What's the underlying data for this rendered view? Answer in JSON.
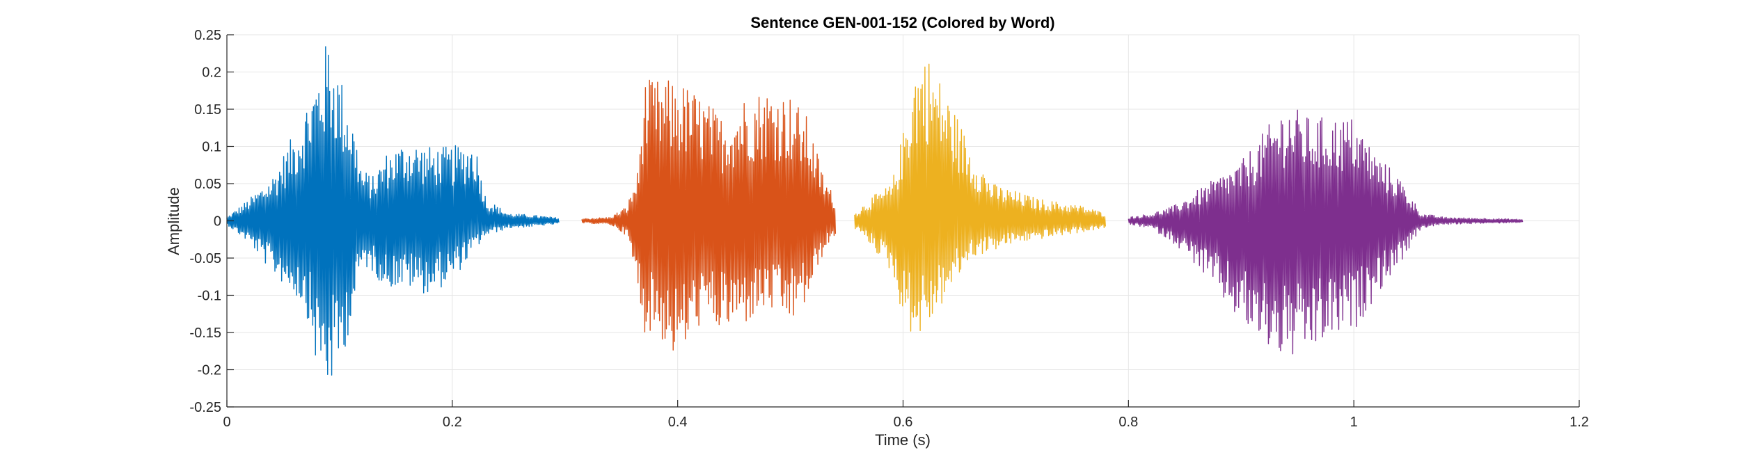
{
  "chart_data": {
    "type": "line",
    "title": "Sentence GEN-001-152 (Colored by Word)",
    "xlabel": "Time (s)",
    "ylabel": "Amplitude",
    "xlim": [
      0,
      1.2
    ],
    "ylim": [
      -0.25,
      0.25
    ],
    "xticks": [
      0,
      0.2,
      0.4,
      0.6,
      0.8,
      1,
      1.2
    ],
    "xtick_labels": [
      "0",
      "0.2",
      "0.4",
      "0.6",
      "0.8",
      "1",
      "1.2"
    ],
    "yticks": [
      -0.25,
      -0.2,
      -0.15,
      -0.1,
      -0.05,
      0,
      0.05,
      0.1,
      0.15,
      0.2,
      0.25
    ],
    "ytick_labels": [
      "-0.25",
      "-0.2",
      "-0.15",
      "-0.1",
      "-0.05",
      "0",
      "0.05",
      "0.1",
      "0.15",
      "0.2",
      "0.25"
    ],
    "grid": true,
    "series": [
      {
        "color": "#0072BD",
        "x": [
          0,
          0.02,
          0.04,
          0.06,
          0.07,
          0.08,
          0.09,
          0.1,
          0.11,
          0.12,
          0.13,
          0.14,
          0.16,
          0.18,
          0.2,
          0.22,
          0.23,
          0.25,
          0.27,
          0.295
        ],
        "upper": [
          0.005,
          0.03,
          0.06,
          0.12,
          0.16,
          0.2,
          0.25,
          0.2,
          0.15,
          0.07,
          0.06,
          0.09,
          0.11,
          0.1,
          0.1,
          0.11,
          0.03,
          0.01,
          0.008,
          0.004
        ],
        "lower": [
          -0.005,
          -0.03,
          -0.07,
          -0.1,
          -0.12,
          -0.2,
          -0.23,
          -0.2,
          -0.14,
          -0.06,
          -0.07,
          -0.09,
          -0.09,
          -0.1,
          -0.08,
          -0.04,
          -0.02,
          -0.01,
          -0.008,
          -0.004
        ]
      },
      {
        "color": "#D95319",
        "x": [
          0.315,
          0.34,
          0.355,
          0.365,
          0.37,
          0.38,
          0.4,
          0.42,
          0.44,
          0.46,
          0.48,
          0.5,
          0.515,
          0.53,
          0.54
        ],
        "upper": [
          0.003,
          0.005,
          0.02,
          0.07,
          0.19,
          0.19,
          0.19,
          0.17,
          0.14,
          0.17,
          0.18,
          0.17,
          0.14,
          0.06,
          0.03
        ],
        "lower": [
          -0.003,
          -0.005,
          -0.02,
          -0.1,
          -0.15,
          -0.15,
          -0.19,
          -0.14,
          -0.15,
          -0.14,
          -0.12,
          -0.14,
          -0.11,
          -0.04,
          -0.02
        ]
      },
      {
        "color": "#EDB120",
        "x": [
          0.557,
          0.57,
          0.59,
          0.6,
          0.61,
          0.62,
          0.64,
          0.66,
          0.68,
          0.7,
          0.72,
          0.74,
          0.76,
          0.78
        ],
        "upper": [
          0.01,
          0.03,
          0.05,
          0.12,
          0.21,
          0.23,
          0.17,
          0.1,
          0.05,
          0.04,
          0.03,
          0.025,
          0.02,
          0.01
        ],
        "lower": [
          -0.01,
          -0.03,
          -0.07,
          -0.13,
          -0.16,
          -0.15,
          -0.1,
          -0.05,
          -0.04,
          -0.03,
          -0.025,
          -0.02,
          -0.015,
          -0.01
        ]
      },
      {
        "color": "#7E2F8E",
        "x": [
          0.8,
          0.82,
          0.84,
          0.86,
          0.88,
          0.9,
          0.92,
          0.94,
          0.96,
          0.98,
          1,
          1.02,
          1.04,
          1.06,
          1.08,
          1.1,
          1.13,
          1.15
        ],
        "upper": [
          0.005,
          0.01,
          0.02,
          0.04,
          0.06,
          0.08,
          0.12,
          0.16,
          0.14,
          0.14,
          0.14,
          0.09,
          0.06,
          0.01,
          0.005,
          0.004,
          0.003,
          0.002
        ],
        "lower": [
          -0.005,
          -0.01,
          -0.03,
          -0.06,
          -0.1,
          -0.14,
          -0.17,
          -0.19,
          -0.18,
          -0.16,
          -0.15,
          -0.1,
          -0.06,
          -0.01,
          -0.005,
          -0.004,
          -0.003,
          -0.002
        ]
      }
    ]
  }
}
